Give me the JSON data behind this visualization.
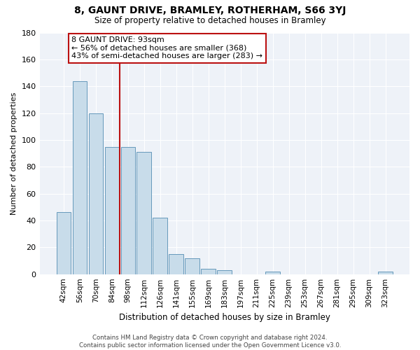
{
  "title": "8, GAUNT DRIVE, BRAMLEY, ROTHERHAM, S66 3YJ",
  "subtitle": "Size of property relative to detached houses in Bramley",
  "xlabel": "Distribution of detached houses by size in Bramley",
  "ylabel": "Number of detached properties",
  "bar_color": "#c8dcea",
  "bar_edge_color": "#6699bb",
  "categories": [
    "42sqm",
    "56sqm",
    "70sqm",
    "84sqm",
    "98sqm",
    "112sqm",
    "126sqm",
    "141sqm",
    "155sqm",
    "169sqm",
    "183sqm",
    "197sqm",
    "211sqm",
    "225sqm",
    "239sqm",
    "253sqm",
    "267sqm",
    "281sqm",
    "295sqm",
    "309sqm",
    "323sqm"
  ],
  "values": [
    46,
    144,
    120,
    95,
    95,
    91,
    42,
    15,
    12,
    4,
    3,
    0,
    0,
    2,
    0,
    0,
    0,
    0,
    0,
    0,
    2
  ],
  "ylim": [
    0,
    180
  ],
  "yticks": [
    0,
    20,
    40,
    60,
    80,
    100,
    120,
    140,
    160,
    180
  ],
  "vline_index": 4,
  "vline_color": "#bb1111",
  "annotation_title": "8 GAUNT DRIVE: 93sqm",
  "annotation_line1": "← 56% of detached houses are smaller (368)",
  "annotation_line2": "43% of semi-detached houses are larger (283) →",
  "footer_line1": "Contains HM Land Registry data © Crown copyright and database right 2024.",
  "footer_line2": "Contains public sector information licensed under the Open Government Licence v3.0.",
  "background_color": "#eef2f8"
}
